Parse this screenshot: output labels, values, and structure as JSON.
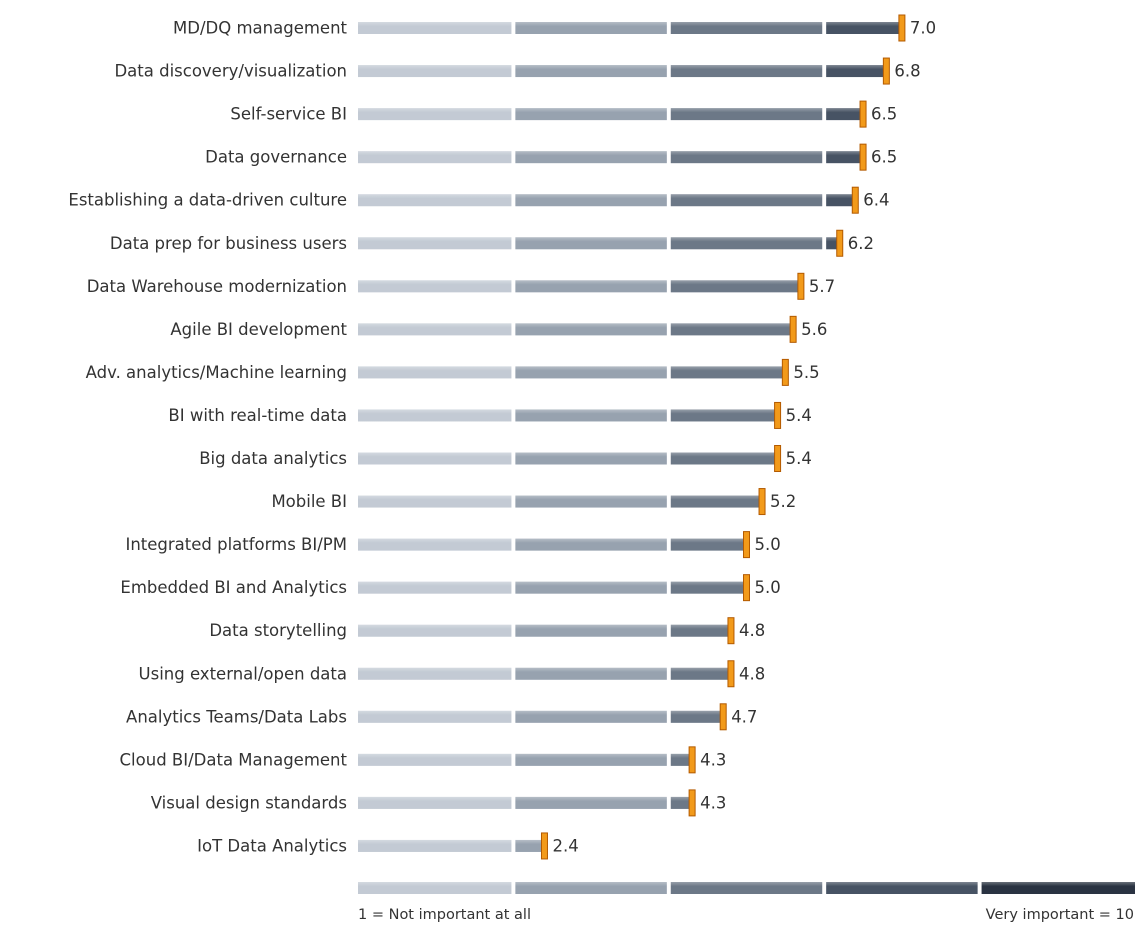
{
  "chart_data": {
    "type": "bar",
    "categories": [
      "MD/DQ management",
      "Data discovery/visualization",
      "Self-service BI",
      "Data governance",
      "Establishing a data-driven culture",
      "Data prep for business users",
      "Data Warehouse modernization",
      "Agile BI development",
      "Adv. analytics/Machine learning",
      "BI with real-time data",
      "Big data analytics",
      "Mobile BI",
      "Integrated platforms BI/PM",
      "Embedded BI and Analytics",
      "Data storytelling",
      "Using external/open data",
      "Analytics Teams/Data Labs",
      "Cloud BI/Data Management",
      "Visual design standards",
      "IoT Data Analytics"
    ],
    "values": [
      7.0,
      6.8,
      6.5,
      6.5,
      6.4,
      6.2,
      5.7,
      5.6,
      5.5,
      5.4,
      5.4,
      5.2,
      5.0,
      5.0,
      4.8,
      4.8,
      4.7,
      4.3,
      4.3,
      2.4
    ],
    "value_labels": [
      "7.0",
      "6.8",
      "6.5",
      "6.5",
      "6.4",
      "6.2",
      "5.7",
      "5.6",
      "5.5",
      "5.4",
      "5.4",
      "5.2",
      "5.0",
      "5.0",
      "4.8",
      "4.8",
      "4.7",
      "4.3",
      "4.3",
      "2.4"
    ],
    "xlim": [
      0,
      10
    ],
    "colors": [
      "#c3cad4",
      "#97a2b0",
      "#6c7887",
      "#485464",
      "#2a3442"
    ],
    "marker_color": "#f29a1a",
    "min_label": "1 = Not important at all",
    "max_label": "Very important = 10"
  }
}
